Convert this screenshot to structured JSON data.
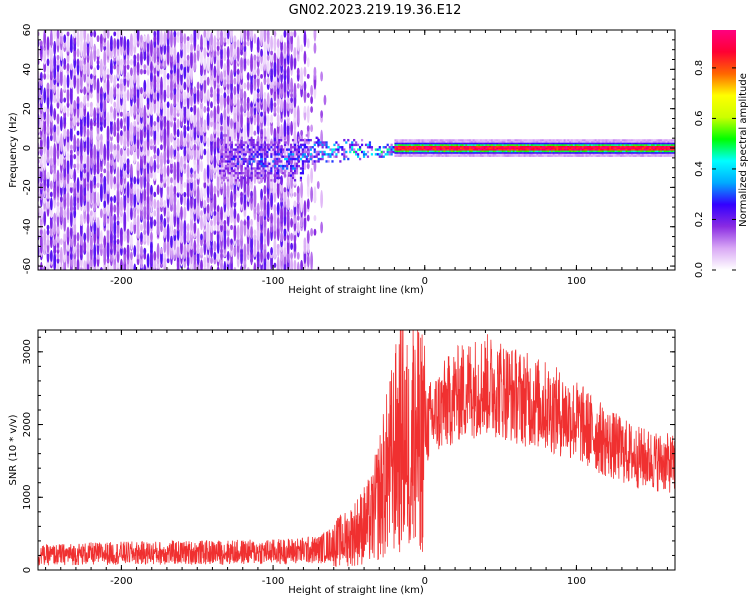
{
  "title": "GN02.2023.219.19.36.E12",
  "chart_data": [
    {
      "type": "heatmap",
      "xlabel": "Height of straight line (km)",
      "ylabel": "Frequency (Hz)",
      "xlim": [
        -255,
        165
      ],
      "ylim": [
        -62,
        60
      ],
      "xticks": [
        -200,
        -100,
        0,
        100
      ],
      "yticks": [
        -60,
        -40,
        -20,
        0,
        20,
        40,
        60
      ],
      "colorbar": {
        "label": "Normalized spectral amplitude",
        "range": [
          0,
          0.95
        ],
        "ticks": [
          0.0,
          0.2,
          0.4,
          0.6,
          0.8
        ],
        "colormap": [
          "#ffffff",
          "#d9a8f5",
          "#8a2be2",
          "#3300ff",
          "#00aaff",
          "#00ffff",
          "#00ff00",
          "#ccff00",
          "#ffff00",
          "#ff6600",
          "#ff0033",
          "#ff007f"
        ]
      },
      "regions": [
        {
          "x_range": [
            -255,
            -80
          ],
          "freq_range": [
            -62,
            60
          ],
          "amplitude_range": [
            0.0,
            0.2
          ],
          "description_values": "broadband low amplitude"
        },
        {
          "x_range": [
            -80,
            -20
          ],
          "freq_range": [
            -20,
            8
          ],
          "amplitude_range": [
            0.1,
            0.6
          ]
        },
        {
          "x_range": [
            -20,
            165
          ],
          "freq_range": [
            -3,
            3
          ],
          "amplitude_range": [
            0.5,
            0.95
          ]
        }
      ]
    },
    {
      "type": "line",
      "xlabel": "Height of straight line (km)",
      "ylabel": "SNR (10 * v/v)",
      "xlim": [
        -255,
        165
      ],
      "ylim": [
        0,
        3300
      ],
      "xticks": [
        -200,
        -100,
        0,
        100
      ],
      "yticks": [
        0,
        1000,
        2000,
        3000
      ],
      "color": "#f03030",
      "series": [
        {
          "x": [
            -255,
            -230,
            -200,
            -150,
            -100,
            -70,
            -50,
            -35,
            -25,
            -15,
            -10,
            -5,
            0,
            10,
            20,
            30,
            40,
            50,
            60,
            80,
            100,
            120,
            140,
            165
          ],
          "y": [
            200,
            220,
            230,
            240,
            250,
            280,
            450,
            700,
            1300,
            1900,
            1600,
            1800,
            1950,
            2200,
            2400,
            2500,
            2550,
            2500,
            2400,
            2250,
            2050,
            1750,
            1550,
            1450
          ]
        }
      ]
    }
  ]
}
